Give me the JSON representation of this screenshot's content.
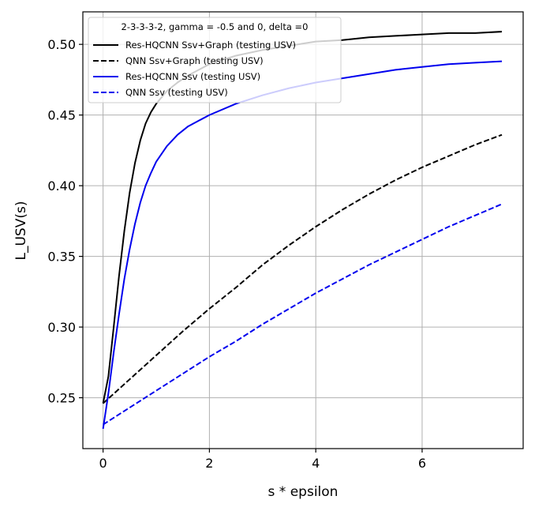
{
  "chart_data": {
    "type": "line",
    "title": "",
    "xlabel": "s * epsilon",
    "ylabel": "L_USV(s)",
    "xlim": [
      -0.38,
      7.9
    ],
    "ylim": [
      0.214,
      0.523
    ],
    "xticks": [
      0,
      2,
      4,
      6
    ],
    "yticks": [
      0.25,
      0.3,
      0.35,
      0.4,
      0.45,
      0.5
    ],
    "ytick_labels": [
      "0.25",
      "0.30",
      "0.35",
      "0.40",
      "0.45",
      "0.50"
    ],
    "xtick_labels": [
      "0",
      "2",
      "4",
      "6"
    ],
    "grid": true,
    "legend": {
      "title": "2-3-3-3-2, gamma = -0.5 and 0, delta =0",
      "placement": "upper-left"
    },
    "series": [
      {
        "name": "Res-HQCNN Ssv+Graph (testing USV)",
        "color": "#000000",
        "dash": "solid",
        "x": [
          0,
          0.1,
          0.2,
          0.3,
          0.4,
          0.5,
          0.6,
          0.7,
          0.8,
          0.9,
          1.0,
          1.2,
          1.4,
          1.6,
          1.8,
          2.0,
          2.5,
          3.0,
          3.5,
          4.0,
          4.5,
          5.0,
          5.5,
          6.0,
          6.5,
          7.0,
          7.5
        ],
        "y": [
          0.246,
          0.265,
          0.3,
          0.336,
          0.368,
          0.395,
          0.416,
          0.432,
          0.444,
          0.452,
          0.458,
          0.467,
          0.473,
          0.478,
          0.482,
          0.486,
          0.492,
          0.496,
          0.499,
          0.502,
          0.503,
          0.505,
          0.506,
          0.507,
          0.508,
          0.508,
          0.509
        ]
      },
      {
        "name": "QNN Ssv+Graph (testing USV)",
        "color": "#000000",
        "dash": "dashed",
        "x": [
          0,
          0.5,
          1.0,
          1.5,
          2.0,
          2.5,
          3.0,
          3.5,
          4.0,
          4.5,
          5.0,
          5.5,
          6.0,
          6.5,
          7.0,
          7.5
        ],
        "y": [
          0.246,
          0.263,
          0.28,
          0.297,
          0.313,
          0.328,
          0.344,
          0.358,
          0.371,
          0.383,
          0.394,
          0.404,
          0.413,
          0.421,
          0.429,
          0.436
        ]
      },
      {
        "name": "Res-HQCNN Ssv (testing USV)",
        "color": "#0000ee",
        "dash": "solid",
        "x": [
          0,
          0.1,
          0.2,
          0.3,
          0.4,
          0.5,
          0.6,
          0.7,
          0.8,
          0.9,
          1.0,
          1.2,
          1.4,
          1.6,
          1.8,
          2.0,
          2.5,
          3.0,
          3.5,
          4.0,
          4.5,
          5.0,
          5.5,
          6.0,
          6.5,
          7.0,
          7.5
        ],
        "y": [
          0.228,
          0.253,
          0.282,
          0.309,
          0.334,
          0.355,
          0.373,
          0.388,
          0.4,
          0.409,
          0.417,
          0.428,
          0.436,
          0.442,
          0.446,
          0.45,
          0.458,
          0.464,
          0.469,
          0.473,
          0.476,
          0.479,
          0.482,
          0.484,
          0.486,
          0.487,
          0.488
        ]
      },
      {
        "name": "QNN Ssv (testing USV)",
        "color": "#0000ee",
        "dash": "dashed",
        "x": [
          0,
          0.5,
          1.0,
          1.5,
          2.0,
          2.5,
          3.0,
          3.5,
          4.0,
          4.5,
          5.0,
          5.5,
          6.0,
          6.5,
          7.0,
          7.5
        ],
        "y": [
          0.231,
          0.243,
          0.255,
          0.267,
          0.279,
          0.29,
          0.302,
          0.313,
          0.324,
          0.334,
          0.344,
          0.353,
          0.362,
          0.371,
          0.379,
          0.387
        ]
      }
    ]
  }
}
